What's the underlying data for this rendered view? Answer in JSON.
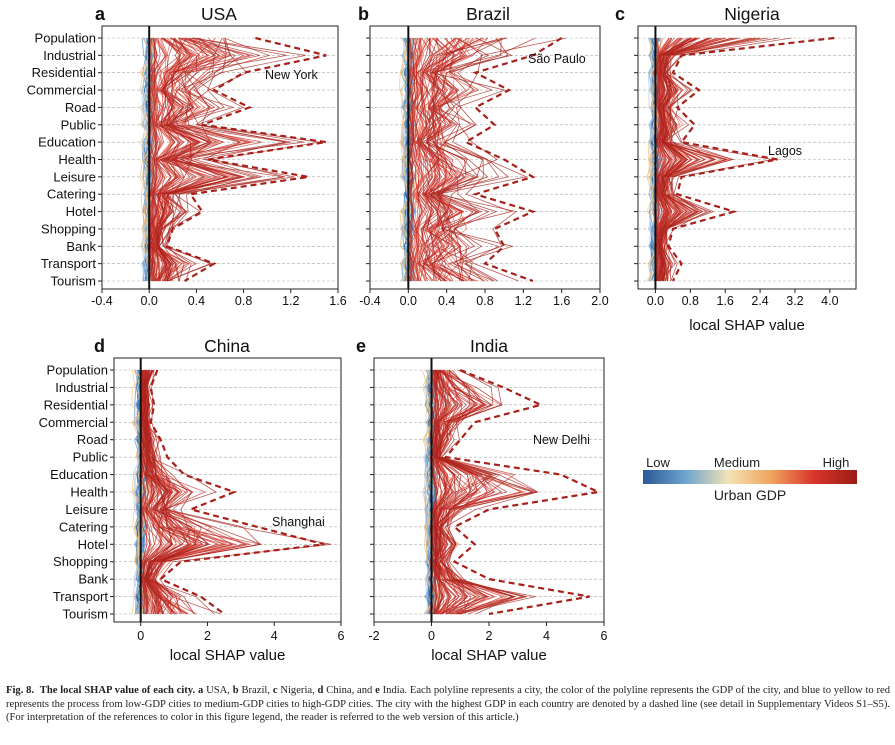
{
  "figure": {
    "colorbar": {
      "low": "Low",
      "medium": "Medium",
      "high": "High",
      "label": "Urban GDP",
      "colors": [
        "#2b5797",
        "#6ea5cf",
        "#f2e3b5",
        "#f0a35e",
        "#d7342a",
        "#9b1c15"
      ]
    },
    "xlabel": "local SHAP value"
  },
  "chart_data": [
    {
      "type": "line",
      "panel": "a",
      "title": "USA",
      "categories": [
        "Population",
        "Industrial",
        "Residential",
        "Commercial",
        "Road",
        "Public",
        "Education",
        "Health",
        "Leisure",
        "Catering",
        "Hotel",
        "Shopping",
        "Bank",
        "Transport",
        "Tourism"
      ],
      "xlim": [
        -0.4,
        1.6
      ],
      "xticks": [
        -0.4,
        0.0,
        0.4,
        0.8,
        1.2,
        1.6
      ],
      "tick_labels": [
        "-0.4",
        "0.0",
        "0.4",
        "0.8",
        "1.2",
        "1.6"
      ],
      "xlabel": "",
      "highlight": {
        "name": "New York",
        "values": [
          0.9,
          1.5,
          0.8,
          0.55,
          0.85,
          0.45,
          1.5,
          0.5,
          1.35,
          0.35,
          0.45,
          0.2,
          0.15,
          0.55,
          0.3
        ]
      }
    },
    {
      "type": "line",
      "panel": "b",
      "title": "Brazil",
      "categories": [
        "Population",
        "Industrial",
        "Residential",
        "Commercial",
        "Road",
        "Public",
        "Education",
        "Health",
        "Leisure",
        "Catering",
        "Hotel",
        "Shopping",
        "Bank",
        "Transport",
        "Tourism"
      ],
      "xlim": [
        -0.4,
        2.0
      ],
      "xticks": [
        -0.4,
        0.0,
        0.4,
        0.8,
        1.2,
        1.6,
        2.0
      ],
      "tick_labels": [
        "-0.4",
        "0.0",
        "0.4",
        "0.8",
        "1.2",
        "1.6",
        "2.0"
      ],
      "xlabel": "",
      "highlight": {
        "name": "São Paulo",
        "values": [
          1.6,
          1.3,
          0.7,
          1.05,
          0.7,
          0.9,
          0.6,
          1.0,
          1.3,
          0.7,
          1.3,
          0.9,
          1.0,
          0.8,
          1.3
        ]
      }
    },
    {
      "type": "line",
      "panel": "c",
      "title": "Nigeria",
      "categories": [
        "Population",
        "Industrial",
        "Residential",
        "Commercial",
        "Road",
        "Public",
        "Education",
        "Health",
        "Leisure",
        "Catering",
        "Hotel",
        "Shopping",
        "Bank",
        "Transport",
        "Tourism"
      ],
      "xlim": [
        -0.4,
        4.6
      ],
      "xticks": [
        0.0,
        0.8,
        1.6,
        2.4,
        3.2,
        4.0
      ],
      "tick_labels": [
        "0.0",
        "0.8",
        "1.6",
        "2.4",
        "3.2",
        "4.0"
      ],
      "xlabel": "local SHAP value",
      "highlight": {
        "name": "Lagos",
        "values": [
          4.1,
          0.6,
          0.4,
          1.0,
          0.5,
          0.9,
          0.6,
          2.8,
          0.6,
          0.5,
          1.8,
          0.4,
          0.3,
          0.6,
          0.4
        ]
      }
    },
    {
      "type": "line",
      "panel": "d",
      "title": "China",
      "categories": [
        "Population",
        "Industrial",
        "Residential",
        "Commercial",
        "Road",
        "Public",
        "Education",
        "Health",
        "Leisure",
        "Catering",
        "Hotel",
        "Shopping",
        "Bank",
        "Transport",
        "Tourism"
      ],
      "xlim": [
        -0.8,
        6.0
      ],
      "xticks": [
        0,
        2,
        4,
        6
      ],
      "tick_labels": [
        "0",
        "2",
        "4",
        "6"
      ],
      "xlabel": "local SHAP value",
      "highlight": {
        "name": "Shanghai",
        "values": [
          0.5,
          0.3,
          0.4,
          0.3,
          0.6,
          0.8,
          1.3,
          2.8,
          1.5,
          3.5,
          5.5,
          1.2,
          0.6,
          1.8,
          2.5
        ]
      }
    },
    {
      "type": "line",
      "panel": "e",
      "title": "India",
      "categories": [
        "Population",
        "Industrial",
        "Residential",
        "Commercial",
        "Road",
        "Public",
        "Education",
        "Health",
        "Leisure",
        "Catering",
        "Hotel",
        "Shopping",
        "Bank",
        "Transport",
        "Tourism"
      ],
      "xlim": [
        -2,
        6
      ],
      "xticks": [
        -2,
        0,
        2,
        4,
        6
      ],
      "tick_labels": [
        "-2",
        "0",
        "2",
        "4",
        "6"
      ],
      "xlabel": "local SHAP value",
      "highlight": {
        "name": "New Delhi",
        "values": [
          1.0,
          2.5,
          3.8,
          1.5,
          1.0,
          0.5,
          4.5,
          5.8,
          2.0,
          0.8,
          1.5,
          0.8,
          2.0,
          5.5,
          2.0
        ]
      }
    }
  ],
  "caption": {
    "label": "Fig. 8.",
    "title": "The local SHAP value of each city.",
    "a": "a",
    "a_text": " USA, ",
    "b": "b",
    "b_text": " Brazil, ",
    "c": "c",
    "c_text": " Nigeria, ",
    "d": "d",
    "d_text": " China, and ",
    "e": "e",
    "e_text": " India. Each polyline represents a city, the color of the polyline represents the GDP of the city, and blue to yellow to red represents the process from low-GDP cities to medium-GDP cities to high-GDP cities. The city with the highest GDP in each country are denoted by a dashed line (see detail in Supplementary Videos S1–S5). (For interpretation of the references to color in this figure legend, the reader is referred to the web version of this article.)"
  }
}
